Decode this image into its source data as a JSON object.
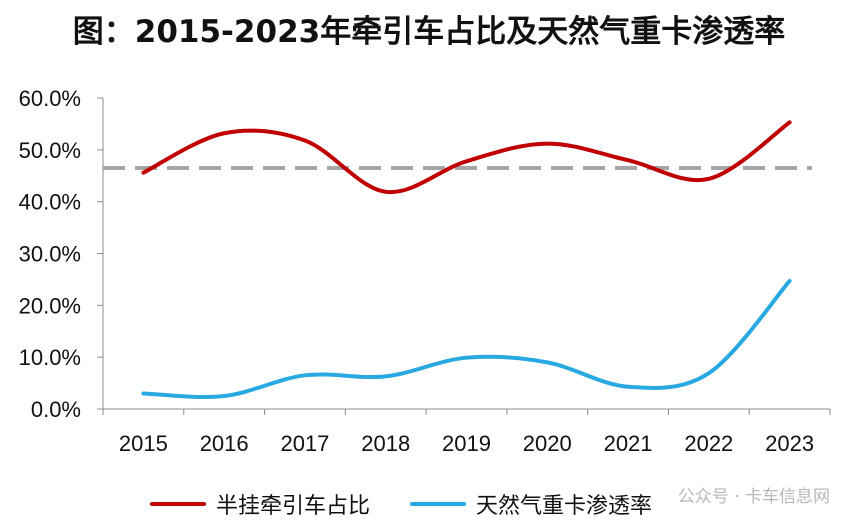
{
  "chart_data": {
    "type": "line",
    "title": "图：2015-2023年牵引车占比及天然气重卡渗透率",
    "categories": [
      "2015",
      "2016",
      "2017",
      "2018",
      "2019",
      "2020",
      "2021",
      "2022",
      "2023"
    ],
    "y_ticks": [
      "0.0%",
      "10.0%",
      "20.0%",
      "30.0%",
      "40.0%",
      "50.0%",
      "60.0%"
    ],
    "ylim": [
      0,
      60
    ],
    "series": [
      {
        "name": "半挂牵引车占比",
        "color": "#C00000",
        "values": [
          45.6,
          53.2,
          51.8,
          41.9,
          47.8,
          51.2,
          48.0,
          44.4,
          55.3
        ]
      },
      {
        "name": "天然气重卡渗透率",
        "color": "#29A9E1",
        "values": [
          3.0,
          2.5,
          6.5,
          6.3,
          9.9,
          9.0,
          4.3,
          6.9,
          24.7
        ]
      }
    ],
    "reference_line": {
      "value": 46.5,
      "color": "#A6A6A6",
      "style": "dashed"
    }
  },
  "watermark": "公众号 · 卡车信息网"
}
